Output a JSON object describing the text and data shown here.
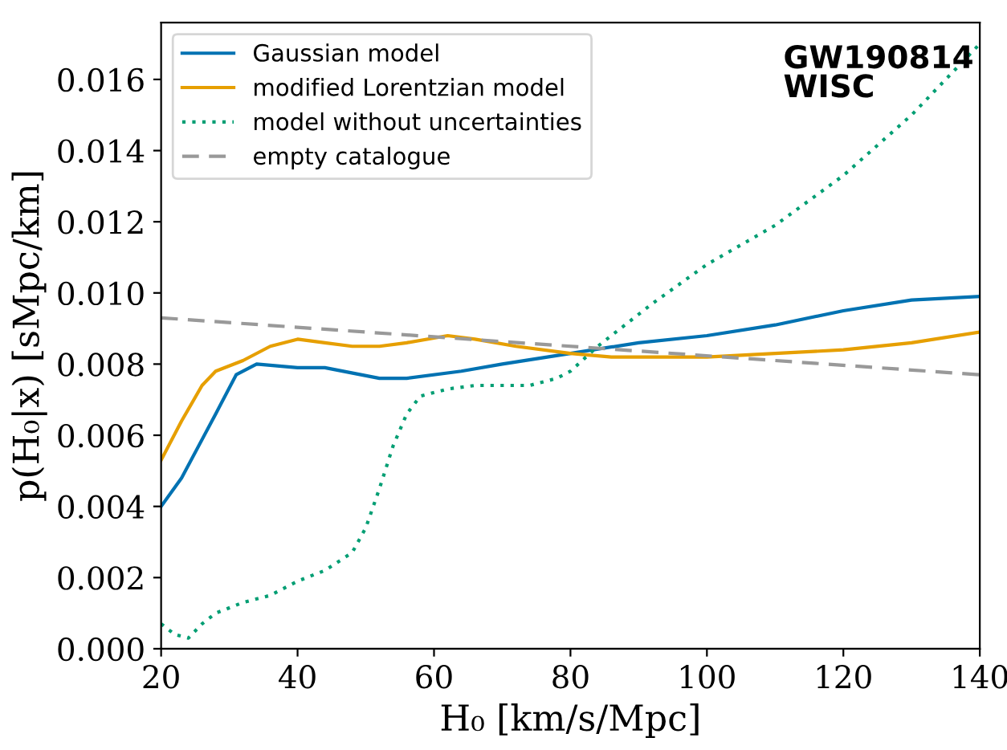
{
  "chart_data": {
    "type": "line",
    "xlabel": "H₀ [km/s/Mpc]",
    "ylabel": "p(H₀|x) [sMpc/km]",
    "annotations": [
      "GW190814\nWISC"
    ],
    "xlim": [
      20,
      140
    ],
    "xticks": [
      20,
      40,
      60,
      80,
      100,
      120,
      140
    ],
    "ylim": [
      0,
      0.0176
    ],
    "yticks": [
      {
        "value": 0,
        "label": "0.000"
      },
      {
        "value": 0.002,
        "label": "0.002"
      },
      {
        "value": 0.004,
        "label": "0.004"
      },
      {
        "value": 0.006,
        "label": "0.006"
      },
      {
        "value": 0.008,
        "label": "0.008"
      },
      {
        "value": 0.01,
        "label": "0.010"
      },
      {
        "value": 0.012,
        "label": "0.012"
      },
      {
        "value": 0.014,
        "label": "0.014"
      },
      {
        "value": 0.016,
        "label": "0.016"
      }
    ],
    "grid": false,
    "legend": "top left",
    "series": [
      {
        "name": "Gaussian model",
        "color": "#0072b2",
        "line_style": "solid",
        "x": [
          20,
          23,
          28,
          31,
          34,
          40,
          44,
          52,
          56,
          64,
          70,
          80,
          90,
          100,
          110,
          120,
          130,
          140
        ],
        "values": [
          0.004,
          0.0048,
          0.0066,
          0.0077,
          0.008,
          0.0079,
          0.0079,
          0.0076,
          0.0076,
          0.0078,
          0.008,
          0.0083,
          0.0086,
          0.0088,
          0.0091,
          0.0095,
          0.0098,
          0.0099
        ]
      },
      {
        "name": "modified Lorentzian model",
        "color": "#e69f00",
        "line_style": "solid",
        "x": [
          20,
          23,
          26,
          28,
          32,
          36,
          40,
          44,
          48,
          52,
          56,
          62,
          66,
          72,
          80,
          86,
          90,
          100,
          110,
          120,
          130,
          140
        ],
        "values": [
          0.0053,
          0.0064,
          0.0074,
          0.0078,
          0.0081,
          0.0085,
          0.0087,
          0.0086,
          0.0085,
          0.0085,
          0.0086,
          0.0088,
          0.0087,
          0.0085,
          0.0083,
          0.0082,
          0.0082,
          0.0082,
          0.0083,
          0.0084,
          0.0086,
          0.0089
        ]
      },
      {
        "name": "model without uncertainties",
        "color": "#009e73",
        "line_style": "dotted",
        "x": [
          20,
          22,
          24,
          26,
          28,
          32,
          36,
          40,
          44,
          48,
          50,
          52,
          54,
          56,
          58,
          62,
          66,
          70,
          74,
          78,
          80,
          84,
          88,
          92,
          100,
          110,
          120,
          130,
          140
        ],
        "values": [
          0.0007,
          0.0004,
          0.0003,
          0.0007,
          0.001,
          0.0013,
          0.0015,
          0.0019,
          0.0022,
          0.0027,
          0.0034,
          0.0045,
          0.0057,
          0.0066,
          0.0071,
          0.0073,
          0.0074,
          0.0074,
          0.0074,
          0.0076,
          0.0078,
          0.0085,
          0.0091,
          0.0097,
          0.0108,
          0.0119,
          0.0133,
          0.015,
          0.017
        ]
      },
      {
        "name": "empty catalogue",
        "color": "#999999",
        "line_style": "dashed",
        "x": [
          20,
          140
        ],
        "values": [
          0.0093,
          0.0077
        ]
      }
    ]
  }
}
